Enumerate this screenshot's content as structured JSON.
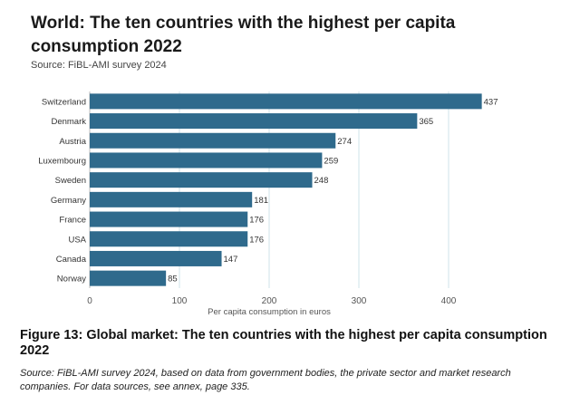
{
  "chart_data": {
    "type": "bar",
    "orientation": "horizontal",
    "title": "World: The ten countries with the highest per capita consumption 2022",
    "subtitle": "Source: FiBL-AMI survey 2024",
    "categories": [
      "Switzerland",
      "Denmark",
      "Austria",
      "Luxembourg",
      "Sweden",
      "Germany",
      "France",
      "USA",
      "Canada",
      "Norway"
    ],
    "values": [
      437,
      365,
      274,
      259,
      248,
      181,
      176,
      176,
      147,
      85
    ],
    "xlabel": "Per capita consumption in euros",
    "ylabel": "",
    "xlim": [
      0,
      450
    ],
    "xticks": [
      0,
      100,
      200,
      300,
      400
    ],
    "grid": true,
    "bar_color": "#2f6a8c",
    "grid_color": "#cfe3ea"
  },
  "figure": {
    "caption": "Figure 13: Global market: The ten countries with the highest per capita consumption 2022",
    "note": "Source: FiBL-AMI survey 2024, based on data from government bodies, the private sector and market research companies. For data sources, see annex, page 335."
  }
}
